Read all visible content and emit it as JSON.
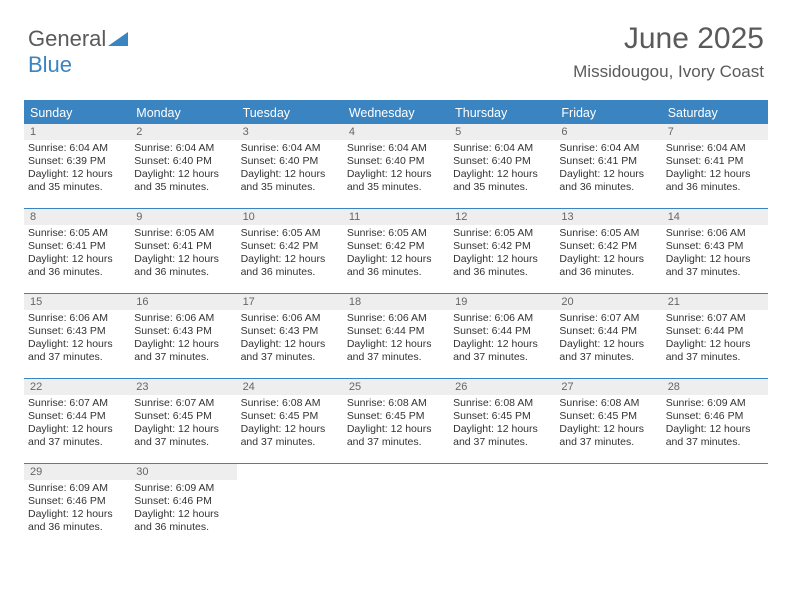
{
  "brand": {
    "part1": "General",
    "part2": "Blue"
  },
  "title": "June 2025",
  "subtitle": "Missidougou, Ivory Coast",
  "colors": {
    "accent": "#3a84c2",
    "header_text": "#ffffff",
    "daynum_bg": "#eeeeee",
    "text": "#333333",
    "muted": "#5a5a5a"
  },
  "day_headers": [
    "Sunday",
    "Monday",
    "Tuesday",
    "Wednesday",
    "Thursday",
    "Friday",
    "Saturday"
  ],
  "days": [
    {
      "n": 1,
      "sunrise": "6:04 AM",
      "sunset": "6:39 PM",
      "daylight": "12 hours and 35 minutes."
    },
    {
      "n": 2,
      "sunrise": "6:04 AM",
      "sunset": "6:40 PM",
      "daylight": "12 hours and 35 minutes."
    },
    {
      "n": 3,
      "sunrise": "6:04 AM",
      "sunset": "6:40 PM",
      "daylight": "12 hours and 35 minutes."
    },
    {
      "n": 4,
      "sunrise": "6:04 AM",
      "sunset": "6:40 PM",
      "daylight": "12 hours and 35 minutes."
    },
    {
      "n": 5,
      "sunrise": "6:04 AM",
      "sunset": "6:40 PM",
      "daylight": "12 hours and 35 minutes."
    },
    {
      "n": 6,
      "sunrise": "6:04 AM",
      "sunset": "6:41 PM",
      "daylight": "12 hours and 36 minutes."
    },
    {
      "n": 7,
      "sunrise": "6:04 AM",
      "sunset": "6:41 PM",
      "daylight": "12 hours and 36 minutes."
    },
    {
      "n": 8,
      "sunrise": "6:05 AM",
      "sunset": "6:41 PM",
      "daylight": "12 hours and 36 minutes."
    },
    {
      "n": 9,
      "sunrise": "6:05 AM",
      "sunset": "6:41 PM",
      "daylight": "12 hours and 36 minutes."
    },
    {
      "n": 10,
      "sunrise": "6:05 AM",
      "sunset": "6:42 PM",
      "daylight": "12 hours and 36 minutes."
    },
    {
      "n": 11,
      "sunrise": "6:05 AM",
      "sunset": "6:42 PM",
      "daylight": "12 hours and 36 minutes."
    },
    {
      "n": 12,
      "sunrise": "6:05 AM",
      "sunset": "6:42 PM",
      "daylight": "12 hours and 36 minutes."
    },
    {
      "n": 13,
      "sunrise": "6:05 AM",
      "sunset": "6:42 PM",
      "daylight": "12 hours and 36 minutes."
    },
    {
      "n": 14,
      "sunrise": "6:06 AM",
      "sunset": "6:43 PM",
      "daylight": "12 hours and 37 minutes."
    },
    {
      "n": 15,
      "sunrise": "6:06 AM",
      "sunset": "6:43 PM",
      "daylight": "12 hours and 37 minutes."
    },
    {
      "n": 16,
      "sunrise": "6:06 AM",
      "sunset": "6:43 PM",
      "daylight": "12 hours and 37 minutes."
    },
    {
      "n": 17,
      "sunrise": "6:06 AM",
      "sunset": "6:43 PM",
      "daylight": "12 hours and 37 minutes."
    },
    {
      "n": 18,
      "sunrise": "6:06 AM",
      "sunset": "6:44 PM",
      "daylight": "12 hours and 37 minutes."
    },
    {
      "n": 19,
      "sunrise": "6:06 AM",
      "sunset": "6:44 PM",
      "daylight": "12 hours and 37 minutes."
    },
    {
      "n": 20,
      "sunrise": "6:07 AM",
      "sunset": "6:44 PM",
      "daylight": "12 hours and 37 minutes."
    },
    {
      "n": 21,
      "sunrise": "6:07 AM",
      "sunset": "6:44 PM",
      "daylight": "12 hours and 37 minutes."
    },
    {
      "n": 22,
      "sunrise": "6:07 AM",
      "sunset": "6:44 PM",
      "daylight": "12 hours and 37 minutes."
    },
    {
      "n": 23,
      "sunrise": "6:07 AM",
      "sunset": "6:45 PM",
      "daylight": "12 hours and 37 minutes."
    },
    {
      "n": 24,
      "sunrise": "6:08 AM",
      "sunset": "6:45 PM",
      "daylight": "12 hours and 37 minutes."
    },
    {
      "n": 25,
      "sunrise": "6:08 AM",
      "sunset": "6:45 PM",
      "daylight": "12 hours and 37 minutes."
    },
    {
      "n": 26,
      "sunrise": "6:08 AM",
      "sunset": "6:45 PM",
      "daylight": "12 hours and 37 minutes."
    },
    {
      "n": 27,
      "sunrise": "6:08 AM",
      "sunset": "6:45 PM",
      "daylight": "12 hours and 37 minutes."
    },
    {
      "n": 28,
      "sunrise": "6:09 AM",
      "sunset": "6:46 PM",
      "daylight": "12 hours and 37 minutes."
    },
    {
      "n": 29,
      "sunrise": "6:09 AM",
      "sunset": "6:46 PM",
      "daylight": "12 hours and 36 minutes."
    },
    {
      "n": 30,
      "sunrise": "6:09 AM",
      "sunset": "6:46 PM",
      "daylight": "12 hours and 36 minutes."
    }
  ],
  "labels": {
    "sunrise": "Sunrise: ",
    "sunset": "Sunset: ",
    "daylight": "Daylight: "
  },
  "layout": {
    "start_offset": 0,
    "total_cells": 35
  }
}
